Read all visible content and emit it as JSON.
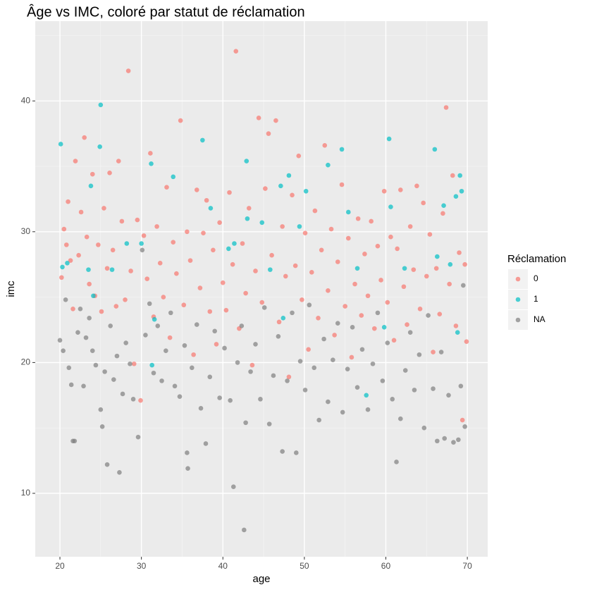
{
  "chart_data": {
    "type": "scatter",
    "title": "Âge vs IMC, coloré par statut de réclamation",
    "xlabel": "age",
    "ylabel": "imc",
    "legend_title": "Réclamation",
    "legend_position": "right",
    "xlim": [
      16.97,
      72.5
    ],
    "ylim": [
      5.15,
      46.1
    ],
    "xticks": [
      20,
      30,
      40,
      50,
      60,
      70
    ],
    "yticks": [
      10,
      20,
      30,
      40
    ],
    "grid": true,
    "series": [
      {
        "name": "0",
        "color": "#F8766D",
        "x": [
          20.2,
          20.5,
          20.8,
          21.0,
          21.3,
          21.6,
          21.9,
          22.3,
          22.6,
          23.0,
          23.3,
          23.6,
          24.0,
          24.3,
          24.7,
          25.1,
          25.4,
          25.8,
          26.1,
          26.5,
          26.9,
          27.2,
          27.6,
          28.0,
          28.4,
          28.7,
          29.1,
          29.5,
          29.9,
          30.3,
          30.7,
          31.1,
          31.5,
          31.9,
          32.3,
          32.7,
          33.1,
          33.5,
          33.9,
          34.3,
          34.8,
          35.2,
          35.6,
          36.0,
          36.4,
          36.8,
          37.2,
          37.6,
          38.0,
          38.4,
          38.8,
          39.2,
          39.6,
          40.0,
          40.4,
          40.8,
          41.2,
          41.6,
          42.0,
          42.4,
          42.8,
          43.2,
          43.6,
          44.0,
          44.4,
          44.8,
          45.2,
          45.6,
          46.0,
          46.5,
          46.9,
          47.3,
          47.7,
          48.1,
          48.5,
          48.9,
          49.3,
          49.7,
          50.1,
          50.5,
          50.9,
          51.3,
          51.7,
          52.1,
          52.5,
          52.9,
          53.3,
          53.7,
          54.1,
          54.6,
          55.0,
          55.4,
          55.8,
          56.2,
          56.6,
          57.0,
          57.4,
          57.8,
          58.2,
          58.6,
          59.0,
          59.4,
          59.8,
          60.2,
          60.6,
          61.0,
          61.4,
          61.8,
          62.2,
          62.6,
          63.0,
          63.4,
          63.8,
          64.2,
          64.6,
          65.0,
          65.4,
          65.8,
          66.2,
          66.6,
          67.0,
          67.4,
          67.8,
          68.2,
          68.6,
          69.0,
          69.4,
          69.7,
          69.9
        ],
        "values": [
          26.5,
          30.2,
          29.0,
          32.3,
          27.8,
          24.1,
          35.4,
          28.2,
          31.5,
          37.2,
          29.6,
          26.0,
          34.4,
          25.1,
          29.0,
          23.9,
          31.8,
          27.2,
          34.5,
          28.6,
          24.3,
          35.4,
          30.8,
          24.8,
          42.3,
          27.0,
          19.9,
          30.9,
          17.1,
          29.7,
          26.4,
          36.0,
          23.5,
          30.4,
          27.6,
          25.0,
          33.4,
          21.9,
          29.2,
          26.8,
          38.5,
          24.4,
          30.0,
          27.8,
          20.6,
          33.2,
          25.7,
          29.9,
          32.4,
          23.9,
          28.6,
          21.4,
          30.7,
          26.1,
          24.0,
          33.0,
          27.5,
          43.8,
          22.6,
          29.1,
          25.3,
          31.8,
          19.8,
          27.0,
          38.7,
          24.6,
          33.3,
          37.5,
          28.2,
          38.5,
          23.1,
          30.4,
          26.6,
          18.9,
          32.8,
          27.4,
          35.8,
          24.8,
          29.9,
          21.0,
          26.9,
          31.6,
          23.4,
          28.6,
          36.6,
          25.5,
          30.2,
          22.1,
          27.7,
          33.6,
          24.3,
          29.5,
          20.4,
          26.0,
          31.0,
          23.6,
          28.3,
          25.1,
          30.8,
          22.6,
          28.9,
          26.3,
          33.1,
          24.6,
          29.6,
          21.7,
          28.7,
          33.2,
          25.8,
          22.9,
          30.4,
          27.1,
          33.5,
          24.1,
          32.2,
          26.6,
          29.8,
          20.8,
          27.2,
          23.7,
          31.4,
          39.5,
          26.0,
          34.3,
          22.8,
          28.4,
          15.6,
          27.5,
          21.6
        ]
      },
      {
        "name": "1",
        "color": "#00BFC4",
        "x": [
          20.1,
          20.3,
          20.9,
          23.5,
          23.8,
          24.1,
          24.9,
          25.0,
          26.4,
          28.2,
          30.0,
          31.2,
          31.3,
          31.6,
          33.9,
          37.5,
          38.5,
          40.7,
          41.4,
          42.9,
          43.0,
          44.8,
          45.8,
          47.1,
          47.4,
          48.1,
          49.4,
          50.2,
          52.9,
          54.6,
          55.4,
          56.5,
          57.6,
          59.8,
          60.4,
          60.6,
          62.3,
          66.0,
          66.3,
          67.1,
          67.9,
          68.6,
          69.1,
          69.3,
          68.8
        ],
        "values": [
          36.7,
          27.3,
          27.6,
          27.1,
          33.5,
          25.1,
          36.5,
          39.7,
          27.1,
          29.1,
          29.1,
          35.2,
          19.8,
          23.3,
          34.2,
          37.0,
          31.8,
          28.7,
          29.1,
          35.4,
          31.0,
          30.7,
          27.1,
          33.5,
          23.4,
          34.3,
          30.4,
          33.1,
          35.1,
          36.3,
          31.5,
          27.2,
          17.5,
          22.7,
          37.1,
          31.9,
          27.2,
          36.3,
          28.1,
          32.0,
          27.5,
          32.7,
          34.3,
          33.1,
          22.3
        ]
      },
      {
        "name": "NA",
        "color": "#7F7F7F",
        "x": [
          20.0,
          20.4,
          20.7,
          21.1,
          21.4,
          21.6,
          21.8,
          22.2,
          22.5,
          22.9,
          23.2,
          23.6,
          24.0,
          24.4,
          25.0,
          25.2,
          25.5,
          25.8,
          26.2,
          26.6,
          27.0,
          27.3,
          27.7,
          28.1,
          28.6,
          29.0,
          29.6,
          30.1,
          30.5,
          31.0,
          31.5,
          32.0,
          32.5,
          33.0,
          33.6,
          34.1,
          34.7,
          35.3,
          35.6,
          35.7,
          36.2,
          36.8,
          37.3,
          37.9,
          38.4,
          39.0,
          39.6,
          40.2,
          40.9,
          41.3,
          41.8,
          42.3,
          42.6,
          42.8,
          43.4,
          44.0,
          44.6,
          45.1,
          45.7,
          46.2,
          46.8,
          47.3,
          47.9,
          48.5,
          49.0,
          49.5,
          50.1,
          50.6,
          51.2,
          51.8,
          52.4,
          52.9,
          53.5,
          54.1,
          54.7,
          55.3,
          55.9,
          56.5,
          57.1,
          57.8,
          58.4,
          59.0,
          59.6,
          60.2,
          60.8,
          61.3,
          61.8,
          62.4,
          63.0,
          63.5,
          64.1,
          64.7,
          65.2,
          65.8,
          66.3,
          66.8,
          67.2,
          67.7,
          68.3,
          68.9,
          69.2,
          69.5,
          69.7
        ],
        "values": [
          21.7,
          20.9,
          24.8,
          19.6,
          18.3,
          14.0,
          14.0,
          22.3,
          24.1,
          18.2,
          21.9,
          23.4,
          20.9,
          19.8,
          16.4,
          15.1,
          19.3,
          12.2,
          22.8,
          18.7,
          20.5,
          11.6,
          17.6,
          21.5,
          19.9,
          17.2,
          14.3,
          28.6,
          22.1,
          24.5,
          19.2,
          22.8,
          18.6,
          20.9,
          23.8,
          18.2,
          17.4,
          21.3,
          13.1,
          11.9,
          19.6,
          22.9,
          16.5,
          13.8,
          18.9,
          22.4,
          17.3,
          21.1,
          17.1,
          10.5,
          20.0,
          22.8,
          7.2,
          15.4,
          19.3,
          21.4,
          17.2,
          24.2,
          15.3,
          19.0,
          22.0,
          13.2,
          18.6,
          23.8,
          13.1,
          20.1,
          17.9,
          24.4,
          19.6,
          15.6,
          21.8,
          17.0,
          20.2,
          23.0,
          16.2,
          19.5,
          22.7,
          18.1,
          21.0,
          16.4,
          19.9,
          23.8,
          18.6,
          21.5,
          17.2,
          12.4,
          15.7,
          19.4,
          22.3,
          17.9,
          20.6,
          15.0,
          23.6,
          18.0,
          14.0,
          20.8,
          14.2,
          17.5,
          13.9,
          14.1,
          18.2,
          25.9,
          15.1
        ]
      }
    ]
  }
}
